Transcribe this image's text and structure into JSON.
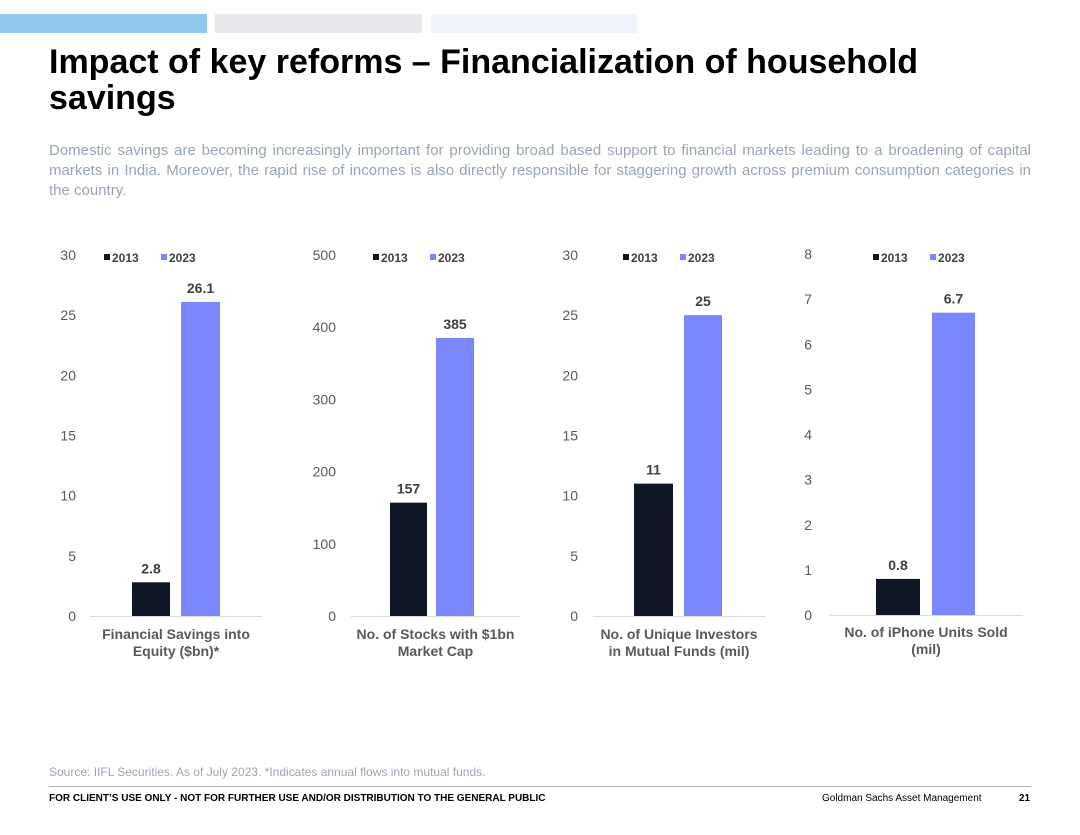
{
  "header": {
    "title": "Impact of key reforms – Financialization of household savings",
    "subtitle": "Domestic savings are becoming increasingly important for providing broad based support to financial markets leading to a broadening of capital markets in India. Moreover, the rapid rise of incomes is also directly responsible for staggering growth across premium consumption categories in the country."
  },
  "colors": {
    "series_2013": "#0f1626",
    "series_2023": "#7b86fb",
    "baseline": "#d9d9d9"
  },
  "chart_data": [
    {
      "type": "bar",
      "title": "",
      "xlabel": "Financial Savings into Equity ($bn)*",
      "ylabel": "",
      "ylim": [
        0,
        30
      ],
      "yticks": [
        0,
        5,
        10,
        15,
        20,
        25,
        30
      ],
      "legend": "top",
      "grid": false,
      "series": [
        {
          "name": "2013",
          "values": [
            2.8
          ],
          "labels": [
            "2.8"
          ]
        },
        {
          "name": "2023",
          "values": [
            26.1
          ],
          "labels": [
            "26.1"
          ]
        }
      ]
    },
    {
      "type": "bar",
      "title": "",
      "xlabel": "No. of Stocks with $1bn Market Cap",
      "ylabel": "",
      "ylim": [
        0,
        500
      ],
      "yticks": [
        0,
        100,
        200,
        300,
        400,
        500
      ],
      "legend": "top",
      "grid": false,
      "series": [
        {
          "name": "2013",
          "values": [
            157
          ],
          "labels": [
            "157"
          ]
        },
        {
          "name": "2023",
          "values": [
            385
          ],
          "labels": [
            "385"
          ]
        }
      ]
    },
    {
      "type": "bar",
      "title": "",
      "xlabel": "No. of Unique Investors in Mutual Funds (mil)",
      "ylabel": "",
      "ylim": [
        0,
        30
      ],
      "yticks": [
        0,
        5,
        10,
        15,
        20,
        25,
        30
      ],
      "legend": "top",
      "grid": false,
      "series": [
        {
          "name": "2013",
          "values": [
            11
          ],
          "labels": [
            "11"
          ]
        },
        {
          "name": "2023",
          "values": [
            25
          ],
          "labels": [
            "25"
          ]
        }
      ]
    },
    {
      "type": "bar",
      "title": "",
      "xlabel": "No. of iPhone Units Sold (mil)",
      "ylabel": "",
      "ylim": [
        0,
        8
      ],
      "yticks": [
        0,
        1,
        2,
        3,
        4,
        5,
        6,
        7,
        8
      ],
      "legend": "top",
      "grid": false,
      "series": [
        {
          "name": "2013",
          "values": [
            0.8
          ],
          "labels": [
            "0.8"
          ]
        },
        {
          "name": "2023",
          "values": [
            6.7
          ],
          "labels": [
            "6.7"
          ]
        }
      ]
    }
  ],
  "footer": {
    "source": "Source: IIFL Securities. As of July 2023. *Indicates annual flows into mutual funds.",
    "disclaimer": "FOR CLIENT’S USE ONLY - NOT FOR FURTHER USE AND/OR DISTRIBUTION TO THE GENERAL PUBLIC",
    "brand": "Goldman Sachs Asset Management",
    "page_number": "21"
  }
}
